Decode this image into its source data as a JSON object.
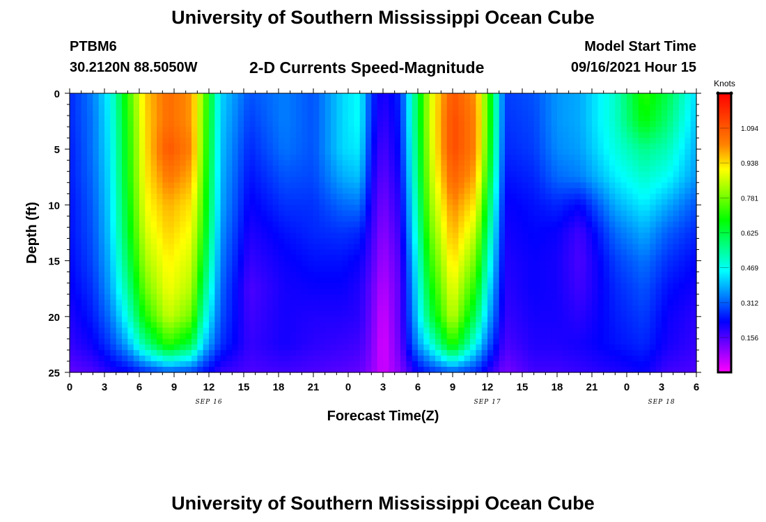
{
  "header": {
    "title": "University of Southern Mississippi Ocean Cube",
    "station_id": "PTBM6",
    "station_coords": "30.2120N  88.5050W",
    "plot_title": "2-D Currents Speed-Magnitude",
    "model_start_label": "Model Start Time",
    "model_start_time": "09/16/2021 Hour 15"
  },
  "footer": {
    "title": "University of Southern Mississippi Ocean Cube"
  },
  "chart_data": {
    "type": "heatmap",
    "title": "2-D Currents Speed-Magnitude",
    "xlabel": "Forecast Time(Z)",
    "ylabel": "Depth (ft)",
    "x_range_hours": [
      0,
      54
    ],
    "y_range": [
      0,
      25
    ],
    "x_ticks": [
      {
        "hour": 0,
        "label": "0"
      },
      {
        "hour": 3,
        "label": "3"
      },
      {
        "hour": 6,
        "label": "6"
      },
      {
        "hour": 9,
        "label": "9"
      },
      {
        "hour": 12,
        "label": "12"
      },
      {
        "hour": 15,
        "label": "15"
      },
      {
        "hour": 18,
        "label": "18"
      },
      {
        "hour": 21,
        "label": "21"
      },
      {
        "hour": 24,
        "label": "0"
      },
      {
        "hour": 27,
        "label": "3"
      },
      {
        "hour": 30,
        "label": "6"
      },
      {
        "hour": 33,
        "label": "9"
      },
      {
        "hour": 36,
        "label": "12"
      },
      {
        "hour": 39,
        "label": "15"
      },
      {
        "hour": 42,
        "label": "18"
      },
      {
        "hour": 45,
        "label": "21"
      },
      {
        "hour": 48,
        "label": "0"
      },
      {
        "hour": 51,
        "label": "3"
      },
      {
        "hour": 54,
        "label": "6"
      }
    ],
    "date_labels": [
      {
        "hour": 12,
        "label": "SEP 16"
      },
      {
        "hour": 36,
        "label": "SEP 17"
      },
      {
        "hour": 51,
        "label": "SEP 18"
      }
    ],
    "y_ticks": [
      0,
      5,
      10,
      15,
      20,
      25
    ],
    "colorbar": {
      "unit": "Knots",
      "min": 0,
      "max": 1.25,
      "ticks": [
        "0.156",
        "0.312",
        "0.469",
        "0.625",
        "0.781",
        "0.938",
        "1.094"
      ],
      "colors": [
        "#ff00ff",
        "#7f00ff",
        "#0000ff",
        "#0080ff",
        "#00ffff",
        "#00ff80",
        "#00ff00",
        "#80ff00",
        "#ffff00",
        "#ff8000",
        "#ff4000",
        "#ff0000"
      ]
    },
    "depth_levels_ft": [
      0,
      2.5,
      5,
      7.5,
      10,
      12.5,
      15,
      17.5,
      20,
      22.5,
      25
    ],
    "speed_profiles_knots": [
      {
        "hour": 0,
        "speeds": [
          0.26,
          0.26,
          0.25,
          0.25,
          0.24,
          0.24,
          0.23,
          0.22,
          0.2,
          0.18,
          0.14
        ]
      },
      {
        "hour": 2,
        "speeds": [
          0.34,
          0.33,
          0.33,
          0.32,
          0.31,
          0.3,
          0.29,
          0.27,
          0.25,
          0.22,
          0.16
        ]
      },
      {
        "hour": 3.5,
        "speeds": [
          0.46,
          0.45,
          0.44,
          0.43,
          0.42,
          0.41,
          0.39,
          0.37,
          0.33,
          0.28,
          0.2
        ]
      },
      {
        "hour": 5,
        "speeds": [
          0.72,
          0.7,
          0.69,
          0.68,
          0.66,
          0.64,
          0.6,
          0.55,
          0.48,
          0.38,
          0.22
        ]
      },
      {
        "hour": 6.5,
        "speeds": [
          0.95,
          0.94,
          0.93,
          0.92,
          0.9,
          0.87,
          0.83,
          0.78,
          0.7,
          0.55,
          0.26
        ]
      },
      {
        "hour": 8.5,
        "speeds": [
          1.06,
          1.06,
          1.1,
          1.04,
          0.98,
          0.95,
          0.92,
          0.9,
          0.86,
          0.72,
          0.3
        ]
      },
      {
        "hour": 10.5,
        "speeds": [
          1.0,
          1.0,
          1.02,
          0.98,
          0.93,
          0.9,
          0.87,
          0.84,
          0.78,
          0.62,
          0.28
        ]
      },
      {
        "hour": 11.5,
        "speeds": [
          0.8,
          0.79,
          0.78,
          0.76,
          0.74,
          0.71,
          0.66,
          0.6,
          0.52,
          0.42,
          0.24
        ]
      },
      {
        "hour": 13,
        "speeds": [
          0.42,
          0.41,
          0.4,
          0.39,
          0.38,
          0.36,
          0.34,
          0.32,
          0.3,
          0.27,
          0.18
        ]
      },
      {
        "hour": 15.5,
        "speeds": [
          0.3,
          0.28,
          0.26,
          0.24,
          0.22,
          0.2,
          0.18,
          0.16,
          0.17,
          0.18,
          0.16
        ]
      },
      {
        "hour": 18.5,
        "speeds": [
          0.34,
          0.34,
          0.33,
          0.3,
          0.27,
          0.24,
          0.22,
          0.21,
          0.21,
          0.21,
          0.17
        ]
      },
      {
        "hour": 21,
        "speeds": [
          0.3,
          0.3,
          0.3,
          0.29,
          0.27,
          0.26,
          0.24,
          0.22,
          0.2,
          0.19,
          0.16
        ]
      },
      {
        "hour": 23.5,
        "speeds": [
          0.42,
          0.42,
          0.42,
          0.38,
          0.32,
          0.27,
          0.24,
          0.22,
          0.2,
          0.18,
          0.15
        ]
      },
      {
        "hour": 25,
        "speeds": [
          0.46,
          0.46,
          0.44,
          0.4,
          0.33,
          0.26,
          0.22,
          0.2,
          0.19,
          0.17,
          0.14
        ]
      },
      {
        "hour": 26,
        "speeds": [
          0.27,
          0.26,
          0.24,
          0.22,
          0.2,
          0.18,
          0.16,
          0.14,
          0.13,
          0.12,
          0.1
        ]
      },
      {
        "hour": 27,
        "speeds": [
          0.2,
          0.18,
          0.16,
          0.14,
          0.12,
          0.1,
          0.08,
          0.06,
          0.04,
          0.03,
          0.04
        ]
      },
      {
        "hour": 28.5,
        "speeds": [
          0.26,
          0.25,
          0.24,
          0.22,
          0.2,
          0.18,
          0.16,
          0.15,
          0.15,
          0.14,
          0.11
        ]
      },
      {
        "hour": 30,
        "speeds": [
          0.62,
          0.62,
          0.6,
          0.58,
          0.55,
          0.52,
          0.48,
          0.45,
          0.42,
          0.36,
          0.22
        ]
      },
      {
        "hour": 31,
        "speeds": [
          0.86,
          0.86,
          0.85,
          0.83,
          0.8,
          0.76,
          0.71,
          0.66,
          0.6,
          0.46,
          0.26
        ]
      },
      {
        "hour": 33,
        "speeds": [
          1.1,
          1.12,
          1.12,
          1.08,
          1.02,
          0.98,
          0.94,
          0.9,
          0.86,
          0.72,
          0.3
        ]
      },
      {
        "hour": 35,
        "speeds": [
          1.0,
          1.02,
          1.02,
          0.98,
          0.92,
          0.85,
          0.78,
          0.7,
          0.6,
          0.46,
          0.26
        ]
      },
      {
        "hour": 36,
        "speeds": [
          0.76,
          0.76,
          0.74,
          0.7,
          0.64,
          0.58,
          0.52,
          0.46,
          0.4,
          0.32,
          0.2
        ]
      },
      {
        "hour": 37.5,
        "speeds": [
          0.28,
          0.27,
          0.26,
          0.24,
          0.22,
          0.21,
          0.2,
          0.19,
          0.18,
          0.16,
          0.12
        ]
      },
      {
        "hour": 40,
        "speeds": [
          0.3,
          0.29,
          0.28,
          0.26,
          0.24,
          0.23,
          0.22,
          0.22,
          0.21,
          0.2,
          0.17
        ]
      },
      {
        "hour": 42,
        "speeds": [
          0.36,
          0.36,
          0.35,
          0.32,
          0.26,
          0.22,
          0.21,
          0.21,
          0.21,
          0.2,
          0.17
        ]
      },
      {
        "hour": 44,
        "speeds": [
          0.38,
          0.38,
          0.37,
          0.34,
          0.23,
          0.17,
          0.16,
          0.17,
          0.19,
          0.21,
          0.18
        ]
      },
      {
        "hour": 47,
        "speeds": [
          0.5,
          0.5,
          0.48,
          0.44,
          0.38,
          0.32,
          0.28,
          0.26,
          0.25,
          0.24,
          0.2
        ]
      },
      {
        "hour": 49.5,
        "speeds": [
          0.72,
          0.68,
          0.56,
          0.5,
          0.44,
          0.38,
          0.33,
          0.3,
          0.28,
          0.26,
          0.22
        ]
      },
      {
        "hour": 51.5,
        "speeds": [
          0.62,
          0.58,
          0.52,
          0.46,
          0.38,
          0.31,
          0.27,
          0.24,
          0.22,
          0.21,
          0.17
        ]
      },
      {
        "hour": 54,
        "speeds": [
          0.42,
          0.4,
          0.38,
          0.36,
          0.3,
          0.26,
          0.23,
          0.21,
          0.19,
          0.18,
          0.16
        ]
      }
    ]
  }
}
